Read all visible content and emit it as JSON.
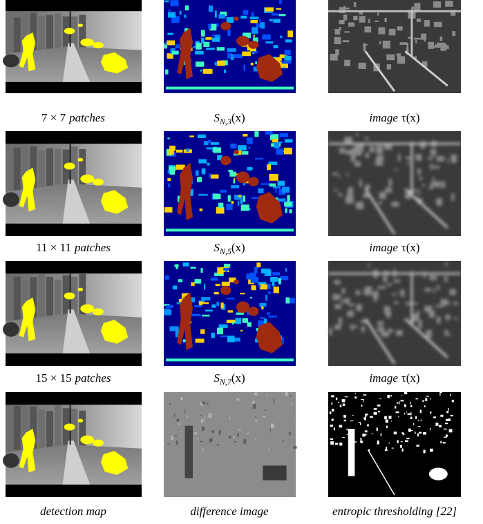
{
  "figure": {
    "rows": [
      {
        "cells": [
          {
            "caption": {
              "math": "7 × 7",
              "text": "patches"
            }
          },
          {
            "caption": {
              "symbol": "S",
              "subscript": "N,3",
              "argument": "(x)"
            }
          },
          {
            "caption": {
              "text": "image",
              "math": "τ(x)"
            }
          }
        ]
      },
      {
        "cells": [
          {
            "caption": {
              "math": "11 × 11",
              "text": "patches"
            }
          },
          {
            "caption": {
              "symbol": "S",
              "subscript": "N,5",
              "argument": "(x)"
            }
          },
          {
            "caption": {
              "text": "image",
              "math": "τ(x)"
            }
          }
        ]
      },
      {
        "cells": [
          {
            "caption": {
              "math": "15 × 15",
              "text": "patches"
            }
          },
          {
            "caption": {
              "symbol": "S",
              "subscript": "N,7",
              "argument": "(x)"
            }
          },
          {
            "caption": {
              "text": "image",
              "math": "τ(x)"
            }
          }
        ]
      },
      {
        "cells": [
          {
            "caption": {
              "text": "detection map"
            }
          },
          {
            "caption": {
              "text": "difference image"
            }
          },
          {
            "caption": {
              "text": "entropic thresholding [22]"
            }
          }
        ]
      }
    ]
  }
}
